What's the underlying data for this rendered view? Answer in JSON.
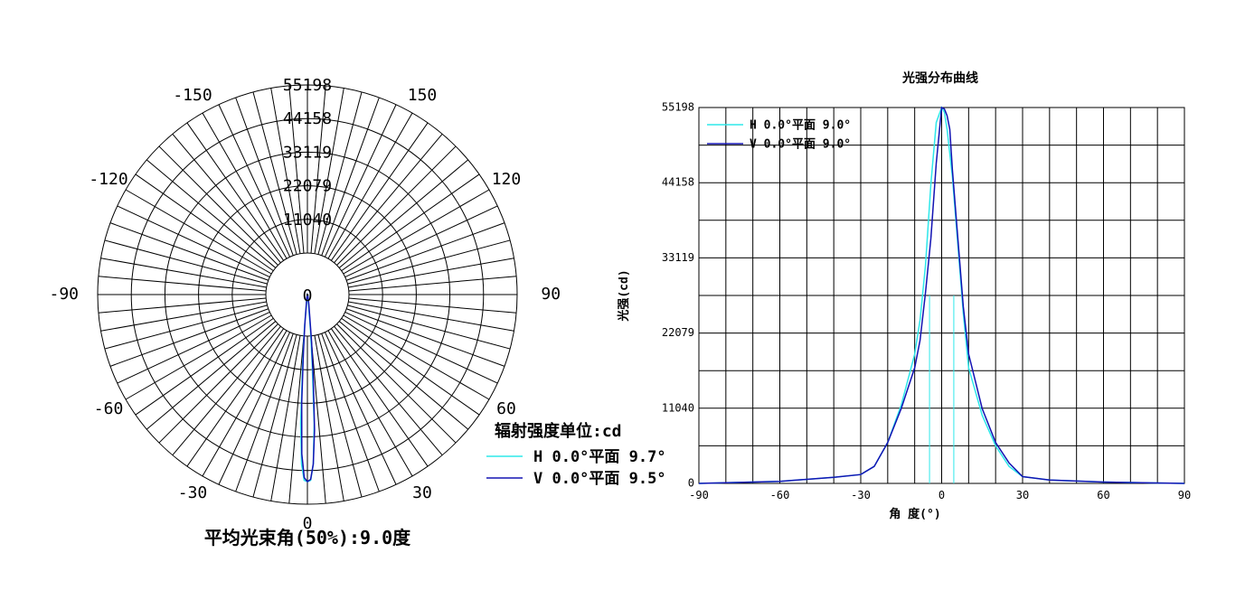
{
  "chart_data": [
    {
      "type": "polar",
      "radial_ticks": [
        "0",
        "11040",
        "22079",
        "33119",
        "44158",
        "55198"
      ],
      "radial_max": 55198,
      "angle_labels": [
        "0",
        "30",
        "60",
        "90",
        "120",
        "150",
        "-150",
        "-120",
        "-90",
        "-60",
        "-30"
      ],
      "legend_title": "辐射强度单位:cd",
      "series": [
        {
          "name": "H 0.0°平面 9.7°",
          "color": "#2ee8ea",
          "angles": [
            -10,
            -8,
            -6,
            -5,
            -4,
            -3,
            -2,
            -1,
            0,
            1,
            2,
            3,
            4,
            5,
            6,
            8,
            10,
            14,
            20,
            30
          ],
          "values": [
            1100,
            1800,
            3500,
            10500,
            20000,
            38000,
            50000,
            54800,
            55198,
            54800,
            50000,
            38000,
            20000,
            10500,
            3500,
            1800,
            1100,
            700,
            400,
            200
          ]
        },
        {
          "name": "V 0.0°平面 9.5°",
          "color": "#1313b3",
          "angles": [
            -10,
            -8,
            -6,
            -5,
            -4,
            -3,
            -2,
            -1,
            0,
            1,
            2,
            3,
            4,
            5,
            6,
            8,
            10,
            14,
            20,
            30
          ],
          "values": [
            1000,
            1600,
            3000,
            9000,
            17000,
            32000,
            47000,
            54000,
            55198,
            54500,
            50000,
            40000,
            25000,
            14000,
            7000,
            3000,
            1500,
            800,
            400,
            200
          ]
        }
      ],
      "caption": "平均光束角(50%):9.0度"
    },
    {
      "type": "line",
      "title": "光强分布曲线",
      "xlabel": "角 度(°)",
      "ylabel": "光强(cd)",
      "xlim": [
        -90,
        90
      ],
      "ylim": [
        0,
        55198
      ],
      "x_ticks": [
        "-90",
        "-60",
        "-30",
        "0",
        "30",
        "60",
        "90"
      ],
      "y_ticks": [
        "0",
        "11040",
        "22079",
        "33119",
        "44158",
        "55198"
      ],
      "series": [
        {
          "name": "H 0.0°平面 9.0°",
          "color": "#2ee8ea",
          "x": [
            -90,
            -60,
            -40,
            -30,
            -25,
            -20,
            -15,
            -10,
            -8,
            -6,
            -4,
            -2,
            0,
            1,
            2,
            4,
            6,
            8,
            10,
            15,
            20,
            25,
            30,
            40,
            60,
            90
          ],
          "y": [
            0,
            300,
            900,
            1300,
            2500,
            6000,
            11500,
            19000,
            24000,
            32000,
            44000,
            53000,
            55198,
            54500,
            52000,
            45000,
            35000,
            25000,
            17000,
            10000,
            5500,
            2500,
            1000,
            500,
            200,
            0
          ]
        },
        {
          "name": "V 0.0°平面 9.0°",
          "color": "#1313b3",
          "x": [
            -90,
            -60,
            -40,
            -30,
            -25,
            -20,
            -15,
            -10,
            -8,
            -6,
            -4,
            -2,
            0,
            1,
            2,
            3,
            4,
            6,
            8,
            10,
            15,
            20,
            25,
            30,
            40,
            60,
            90
          ],
          "y": [
            0,
            300,
            900,
            1300,
            2500,
            6000,
            11000,
            17000,
            21000,
            28000,
            36000,
            47000,
            55198,
            55000,
            54000,
            52000,
            46000,
            36000,
            26000,
            19000,
            11000,
            6000,
            3000,
            1000,
            500,
            200,
            0
          ]
        }
      ]
    }
  ]
}
